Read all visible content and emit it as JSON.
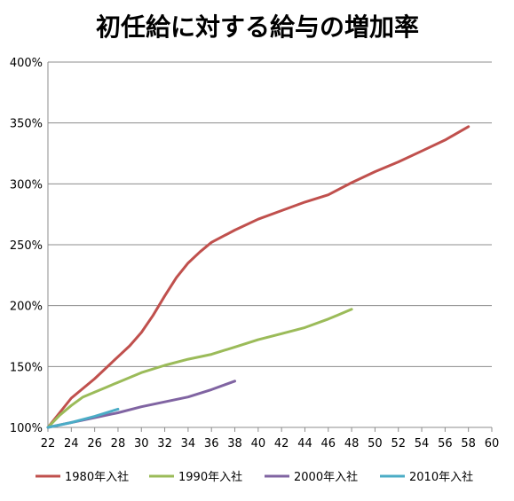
{
  "chart_data": {
    "type": "line",
    "title": "初任給に対する給与の増加率",
    "xlabel": "",
    "ylabel": "",
    "xlim": [
      22,
      60
    ],
    "ylim": [
      100,
      400
    ],
    "x_ticks": [
      22,
      24,
      26,
      28,
      30,
      32,
      34,
      36,
      38,
      40,
      42,
      44,
      46,
      48,
      50,
      52,
      54,
      56,
      58,
      60
    ],
    "y_ticks": [
      100,
      150,
      200,
      250,
      300,
      350,
      400
    ],
    "y_tick_labels": [
      "100%",
      "150%",
      "200%",
      "250%",
      "300%",
      "350%",
      "400%"
    ],
    "grid": true,
    "legend_position": "bottom",
    "series": [
      {
        "name": "1980年入社",
        "color": "#C0504D",
        "x": [
          22,
          24,
          26,
          28,
          29,
          30,
          31,
          32,
          33,
          34,
          35,
          36,
          38,
          40,
          42,
          44,
          46,
          48,
          50,
          52,
          54,
          56,
          58
        ],
        "y": [
          100,
          124,
          140,
          158,
          167,
          178,
          192,
          208,
          223,
          235,
          244,
          252,
          262,
          271,
          278,
          285,
          291,
          301,
          310,
          318,
          327,
          336,
          347
        ]
      },
      {
        "name": "1990年入社",
        "color": "#9BBB59",
        "x": [
          22,
          23,
          24,
          25,
          26,
          27,
          28,
          30,
          32,
          34,
          36,
          38,
          40,
          42,
          44,
          46,
          48
        ],
        "y": [
          100,
          110,
          118,
          125,
          129,
          133,
          137,
          145,
          151,
          156,
          160,
          166,
          172,
          177,
          182,
          189,
          197
        ]
      },
      {
        "name": "2000年入社",
        "color": "#8064A2",
        "x": [
          22,
          24,
          26,
          28,
          30,
          32,
          34,
          36,
          38
        ],
        "y": [
          100,
          104,
          108,
          112,
          117,
          121,
          125,
          131,
          138
        ]
      },
      {
        "name": "2010年入社",
        "color": "#4BACC6",
        "x": [
          22,
          24,
          26,
          28
        ],
        "y": [
          100,
          104,
          109,
          115
        ]
      }
    ]
  }
}
